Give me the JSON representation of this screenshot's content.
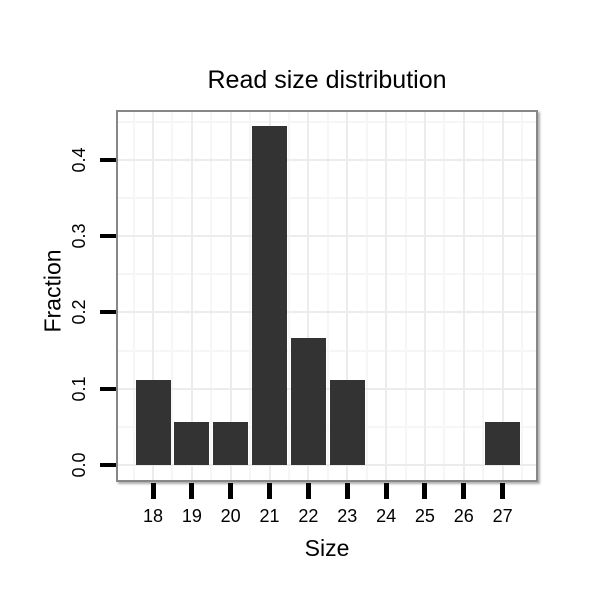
{
  "chart_data": {
    "type": "bar",
    "title": "Read size distribution",
    "xlabel": "Size",
    "ylabel": "Fraction",
    "categories": [
      "18",
      "19",
      "20",
      "21",
      "22",
      "23",
      "24",
      "25",
      "26",
      "27"
    ],
    "values": [
      0.111,
      0.056,
      0.056,
      0.444,
      0.167,
      0.111,
      0,
      0,
      0,
      0.056
    ],
    "y_tick_labels": [
      "0.0",
      "0.1",
      "0.2",
      "0.3",
      "0.4"
    ],
    "y_tick_values": [
      0.0,
      0.1,
      0.2,
      0.3,
      0.4
    ],
    "y_minor_values": [
      0.05,
      0.15,
      0.25,
      0.35,
      0.45
    ],
    "ylim": [
      -0.022,
      0.467
    ],
    "grid": "major+minor, horizontal and vertical",
    "legend": "none",
    "colors": {
      "bar": "#333333",
      "grid_major": "#ececec",
      "grid_minor": "#f6f6f6",
      "panel_border": "#878787",
      "tick": "#000000",
      "text": "#000000",
      "background": "#ffffff"
    }
  }
}
